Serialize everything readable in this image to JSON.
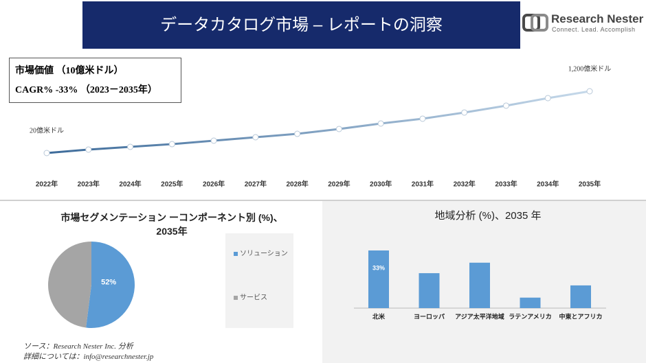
{
  "header": {
    "title": "データカタログ市場 – レポートの洞察",
    "logo_name": "Research Nester",
    "logo_tagline": "Connect. Lead. Accomplish"
  },
  "info": [
    "市場価値 （10億米ドル）",
    "CAGR% -33% （2023－2035年）"
  ],
  "source": [
    "ソース：Research Nester Inc. 分析",
    "詳細については：info@researchnester.jp"
  ],
  "chart_data": [
    {
      "type": "line",
      "categories": [
        "2022年",
        "2023年",
        "2024年",
        "2025年",
        "2026年",
        "2027年",
        "2028年",
        "2029年",
        "2030年",
        "2031年",
        "2032年",
        "2033年",
        "2034年",
        "2035年"
      ],
      "values": [
        20,
        86,
        138,
        190,
        256,
        322,
        387,
        479,
        584,
        676,
        794,
        925,
        1069,
        1200
      ],
      "value_labels": [
        "20億米ドル",
        null,
        null,
        null,
        null,
        null,
        null,
        null,
        null,
        null,
        null,
        null,
        null,
        "1,200億米ドル"
      ],
      "color": [
        "#3d6b9a",
        "#c6d9ea"
      ]
    },
    {
      "type": "pie",
      "title": "市場セグメンテーション ーコンポーネント別 (%)、\n2035年",
      "categories": [
        "ソリューション",
        "サービス"
      ],
      "values": [
        52,
        48
      ],
      "value_labels": [
        "52%",
        null
      ],
      "colors": [
        "#5b9bd5",
        "#a5a5a5"
      ]
    },
    {
      "type": "bar",
      "title": "地域分析 (%)、2035 年",
      "categories": [
        "北米",
        "ヨーロッパ",
        "アジア太平洋地域",
        "ラテンアメリカ",
        "中東とアフリカ"
      ],
      "values": [
        33,
        20,
        26,
        6,
        13
      ],
      "value_labels": [
        "33%",
        null,
        null,
        null,
        null
      ],
      "color": "#5b9bd5"
    }
  ]
}
